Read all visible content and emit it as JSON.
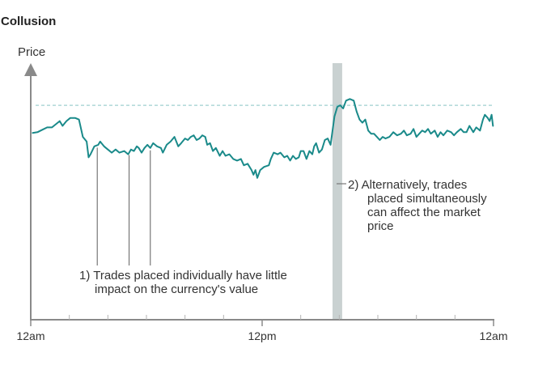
{
  "chart_data": {
    "type": "line",
    "title": "Collusion",
    "ylabel": "Price",
    "xlabel": "",
    "x_ticks": [
      {
        "hour": 0,
        "label": "12am"
      },
      {
        "hour": 12,
        "label": "12pm"
      },
      {
        "hour": 24,
        "label": "12am"
      }
    ],
    "minor_tick_hours": [
      2,
      4,
      6,
      8,
      10,
      14,
      16,
      18,
      20,
      22
    ],
    "xlim": [
      0,
      24
    ],
    "ylim": [
      0,
      100
    ],
    "reference_level": 82,
    "highlight_band": {
      "start_hour": 15.65,
      "end_hour": 16.15
    },
    "series": [
      {
        "name": "Price",
        "color": "#1a8a8a",
        "points": [
          [
            0.1,
            64.5
          ],
          [
            0.35,
            65
          ],
          [
            0.6,
            66.5
          ],
          [
            0.85,
            68
          ],
          [
            1.1,
            68
          ],
          [
            1.3,
            70
          ],
          [
            1.5,
            72
          ],
          [
            1.65,
            69
          ],
          [
            1.85,
            72
          ],
          [
            2.05,
            74
          ],
          [
            2.3,
            74
          ],
          [
            2.5,
            73
          ],
          [
            2.7,
            62
          ],
          [
            2.9,
            59
          ],
          [
            3.0,
            49
          ],
          [
            3.1,
            51
          ],
          [
            3.3,
            56
          ],
          [
            3.5,
            57
          ],
          [
            3.6,
            59
          ],
          [
            3.8,
            56
          ],
          [
            4.0,
            54
          ],
          [
            4.2,
            52
          ],
          [
            4.4,
            54
          ],
          [
            4.6,
            52
          ],
          [
            4.85,
            53
          ],
          [
            5.05,
            51
          ],
          [
            5.2,
            54
          ],
          [
            5.35,
            53
          ],
          [
            5.5,
            56
          ],
          [
            5.6,
            55
          ],
          [
            5.75,
            52
          ],
          [
            5.9,
            55
          ],
          [
            6.05,
            57
          ],
          [
            6.2,
            55
          ],
          [
            6.35,
            58
          ],
          [
            6.55,
            56
          ],
          [
            6.75,
            55
          ],
          [
            6.85,
            52
          ],
          [
            7.05,
            57
          ],
          [
            7.25,
            59
          ],
          [
            7.45,
            62
          ],
          [
            7.65,
            56
          ],
          [
            7.8,
            58
          ],
          [
            8.0,
            61
          ],
          [
            8.15,
            60
          ],
          [
            8.3,
            62
          ],
          [
            8.45,
            63
          ],
          [
            8.6,
            60
          ],
          [
            8.75,
            61
          ],
          [
            8.9,
            63
          ],
          [
            9.05,
            62
          ],
          [
            9.15,
            57
          ],
          [
            9.3,
            58
          ],
          [
            9.45,
            53
          ],
          [
            9.6,
            55
          ],
          [
            9.8,
            50
          ],
          [
            9.95,
            53
          ],
          [
            10.1,
            50
          ],
          [
            10.3,
            51
          ],
          [
            10.5,
            48
          ],
          [
            10.7,
            47
          ],
          [
            10.9,
            48
          ],
          [
            11.05,
            44
          ],
          [
            11.25,
            45
          ],
          [
            11.45,
            41
          ],
          [
            11.55,
            38
          ],
          [
            11.65,
            41
          ],
          [
            11.75,
            36
          ],
          [
            11.9,
            41
          ],
          [
            12.1,
            43
          ],
          [
            12.35,
            44
          ],
          [
            12.45,
            48
          ],
          [
            12.6,
            52
          ],
          [
            12.8,
            51
          ],
          [
            12.95,
            52
          ],
          [
            13.15,
            49
          ],
          [
            13.3,
            50
          ],
          [
            13.45,
            47
          ],
          [
            13.6,
            50
          ],
          [
            13.75,
            48
          ],
          [
            13.9,
            49
          ],
          [
            14.0,
            53
          ],
          [
            14.15,
            53
          ],
          [
            14.3,
            48
          ],
          [
            14.45,
            53
          ],
          [
            14.6,
            51
          ],
          [
            14.7,
            56
          ],
          [
            14.8,
            58
          ],
          [
            14.95,
            52
          ],
          [
            15.1,
            54
          ],
          [
            15.25,
            60
          ],
          [
            15.4,
            61
          ],
          [
            15.55,
            57
          ],
          [
            15.75,
            75
          ],
          [
            15.9,
            81
          ],
          [
            16.05,
            82
          ],
          [
            16.2,
            80
          ],
          [
            16.35,
            85
          ],
          [
            16.55,
            86
          ],
          [
            16.75,
            85
          ],
          [
            16.9,
            78
          ],
          [
            17.05,
            73
          ],
          [
            17.2,
            71
          ],
          [
            17.35,
            73
          ],
          [
            17.5,
            66
          ],
          [
            17.65,
            64
          ],
          [
            17.8,
            64
          ],
          [
            17.95,
            62
          ],
          [
            18.1,
            60
          ],
          [
            18.25,
            62
          ],
          [
            18.4,
            61
          ],
          [
            18.6,
            62
          ],
          [
            18.8,
            65
          ],
          [
            19.0,
            63
          ],
          [
            19.2,
            64
          ],
          [
            19.35,
            66
          ],
          [
            19.5,
            63
          ],
          [
            19.7,
            64
          ],
          [
            19.85,
            67
          ],
          [
            20.0,
            62
          ],
          [
            20.15,
            64
          ],
          [
            20.3,
            66
          ],
          [
            20.45,
            65
          ],
          [
            20.6,
            67
          ],
          [
            20.75,
            64
          ],
          [
            20.95,
            66
          ],
          [
            21.1,
            62
          ],
          [
            21.25,
            65
          ],
          [
            21.4,
            63
          ],
          [
            21.6,
            66
          ],
          [
            21.8,
            65
          ],
          [
            21.95,
            63
          ],
          [
            22.1,
            65
          ],
          [
            22.3,
            67
          ],
          [
            22.45,
            65
          ],
          [
            22.6,
            65
          ],
          [
            22.75,
            69
          ],
          [
            22.95,
            65
          ],
          [
            23.1,
            68
          ],
          [
            23.3,
            66
          ],
          [
            23.45,
            73
          ],
          [
            23.55,
            76
          ],
          [
            23.7,
            74
          ],
          [
            23.8,
            72
          ],
          [
            23.9,
            76
          ],
          [
            23.97,
            69
          ]
        ]
      }
    ],
    "annotations": [
      {
        "id": "trades-individual",
        "lines": [
          "1) Trades placed individually have little",
          "impact on the currency's value"
        ],
        "pointer_hours": [
          3.45,
          5.1,
          6.2
        ]
      },
      {
        "id": "trades-simultaneous",
        "lines": [
          "2) Alternatively, trades",
          "placed simultaneously",
          "can affect the market",
          "price"
        ],
        "pointer_hour": 15.9
      }
    ]
  }
}
